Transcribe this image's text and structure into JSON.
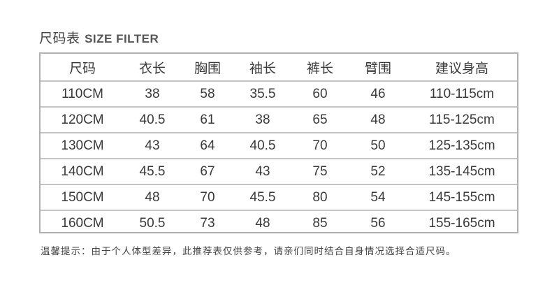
{
  "title": {
    "cn": "尺码表",
    "en": "SIZE FILTER"
  },
  "table": {
    "headers": [
      "尺码",
      "衣长",
      "胸围",
      "袖长",
      "裤长",
      "臂围",
      "建议身高"
    ],
    "rows": [
      [
        "110CM",
        "38",
        "58",
        "35.5",
        "60",
        "46",
        "110-115cm"
      ],
      [
        "120CM",
        "40.5",
        "61",
        "38",
        "65",
        "48",
        "115-125cm"
      ],
      [
        "130CM",
        "43",
        "64",
        "40.5",
        "70",
        "50",
        "125-135cm"
      ],
      [
        "140CM",
        "45.5",
        "67",
        "43",
        "75",
        "52",
        "135-145cm"
      ],
      [
        "150CM",
        "48",
        "70",
        "45.5",
        "80",
        "54",
        "145-155cm"
      ],
      [
        "160CM",
        "50.5",
        "73",
        "48",
        "85",
        "56",
        "155-165cm"
      ]
    ]
  },
  "note": "温馨提示：由于个人体型差异，此推荐表仅供参考，请亲们同时结合自身情况选择合适尺码。"
}
